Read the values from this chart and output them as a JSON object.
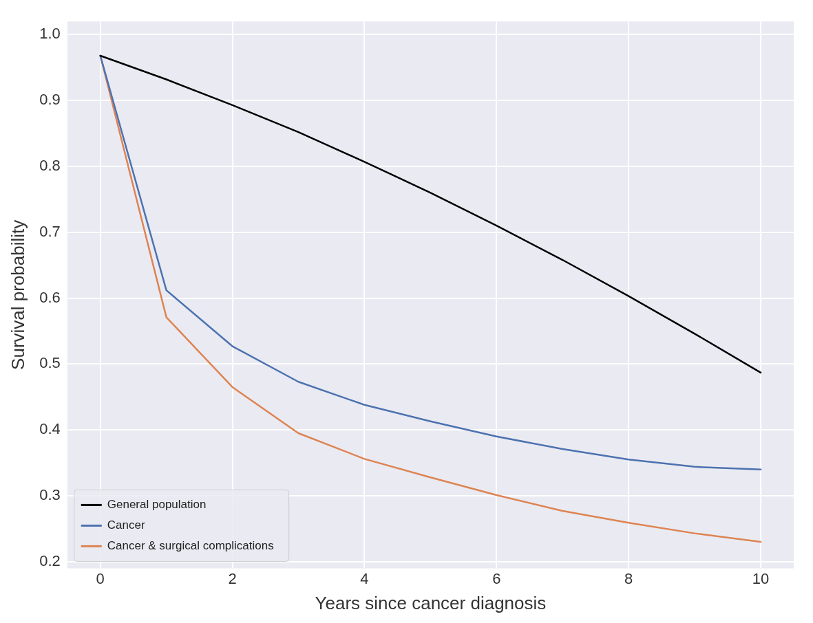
{
  "chart_data": {
    "type": "line",
    "xlabel": "Years since cancer diagnosis",
    "ylabel": "Survival probability",
    "x": [
      0,
      1,
      2,
      3,
      4,
      5,
      6,
      7,
      8,
      9,
      10
    ],
    "series": [
      {
        "name": "General population",
        "color": "#000000",
        "values": [
          0.968,
          0.932,
          0.893,
          0.852,
          0.807,
          0.76,
          0.71,
          0.658,
          0.603,
          0.546,
          0.487
        ]
      },
      {
        "name": "Cancer",
        "color": "#4c72b0",
        "values": [
          0.968,
          0.612,
          0.527,
          0.473,
          0.438,
          0.413,
          0.39,
          0.371,
          0.355,
          0.344,
          0.34
        ]
      },
      {
        "name": "Cancer & surgical complications",
        "color": "#dd8452",
        "values": [
          0.968,
          0.571,
          0.465,
          0.395,
          0.356,
          0.328,
          0.301,
          0.277,
          0.259,
          0.243,
          0.23
        ]
      }
    ],
    "xlim": [
      -0.5,
      10.5
    ],
    "ylim": [
      0.19,
      1.02
    ],
    "xticks": [
      0,
      2,
      4,
      6,
      8,
      10
    ],
    "yticks": [
      0.2,
      0.3,
      0.4,
      0.5,
      0.6,
      0.7,
      0.8,
      0.9,
      {
        "value": 1.0,
        "label": "1.0"
      }
    ],
    "grid": true,
    "legend": "bottom left",
    "marker": "none",
    "line_style": "solid"
  }
}
